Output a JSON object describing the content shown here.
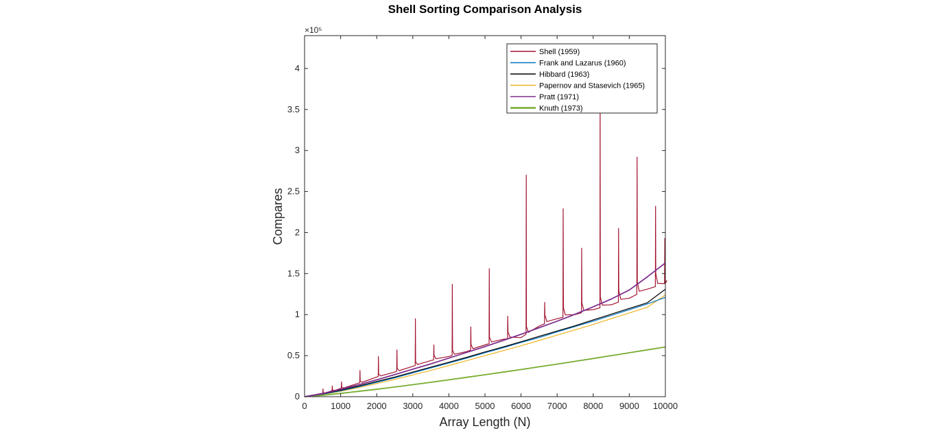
{
  "chart_data": {
    "type": "line",
    "title": "Shell Sorting Comparison Analysis",
    "xlabel": "Array Length (N)",
    "ylabel": "Compares",
    "y_exponent_label": "×10⁵",
    "xlim": [
      0,
      10000
    ],
    "ylim": [
      0,
      440000
    ],
    "x_ticks": [
      0,
      1000,
      2000,
      3000,
      4000,
      5000,
      6000,
      7000,
      8000,
      9000,
      10000
    ],
    "x_tick_labels": [
      "0",
      "1000",
      "2000",
      "3000",
      "4000",
      "5000",
      "6000",
      "7000",
      "8000",
      "9000",
      "10000"
    ],
    "y_ticks": [
      0,
      50000,
      100000,
      150000,
      200000,
      250000,
      300000,
      350000,
      400000
    ],
    "y_tick_labels": [
      "0",
      "0.5",
      "1",
      "1.5",
      "2",
      "2.5",
      "3",
      "3.5",
      "4"
    ],
    "grid": false,
    "legend_position": "top-right",
    "x": [
      0,
      500,
      1000,
      1500,
      2000,
      2500,
      3000,
      3500,
      4000,
      4500,
      5000,
      5500,
      6000,
      6500,
      7000,
      7500,
      8000,
      8500,
      9000,
      9500,
      10000
    ],
    "series": [
      {
        "name": "Shell (1959)",
        "color": "#A2142F",
        "width": 1.2,
        "values": [
          0,
          4200,
          10000,
          16500,
          24000,
          30000,
          37000,
          44000,
          49000,
          55000,
          63000,
          70000,
          72000,
          86000,
          95000,
          100000,
          106000,
          112000,
          120000,
          131000,
          138000
        ],
        "spikes": [
          {
            "x": 512,
            "y": 9500
          },
          {
            "x": 768,
            "y": 13000
          },
          {
            "x": 1024,
            "y": 18000
          },
          {
            "x": 1536,
            "y": 32000
          },
          {
            "x": 2048,
            "y": 49000
          },
          {
            "x": 2560,
            "y": 57000
          },
          {
            "x": 3072,
            "y": 95000
          },
          {
            "x": 3584,
            "y": 63000
          },
          {
            "x": 4096,
            "y": 137000
          },
          {
            "x": 4608,
            "y": 85000
          },
          {
            "x": 5120,
            "y": 156000
          },
          {
            "x": 5632,
            "y": 98000
          },
          {
            "x": 6144,
            "y": 270000
          },
          {
            "x": 6656,
            "y": 115000
          },
          {
            "x": 7168,
            "y": 229000
          },
          {
            "x": 7680,
            "y": 181000
          },
          {
            "x": 8192,
            "y": 364000
          },
          {
            "x": 8704,
            "y": 205000
          },
          {
            "x": 9216,
            "y": 292000
          },
          {
            "x": 9728,
            "y": 232000
          },
          {
            "x": 9984,
            "y": 193000
          }
        ]
      },
      {
        "name": "Frank and Lazarus (1960)",
        "color": "#0072BD",
        "width": 1.2,
        "values": [
          0,
          3000,
          7200,
          12000,
          17500,
          23000,
          29000,
          35000,
          41000,
          47000,
          53500,
          59500,
          66000,
          72000,
          79000,
          85500,
          92000,
          99000,
          106000,
          113000,
          121000
        ]
      },
      {
        "name": "Hibbard (1963)",
        "color": "#000000",
        "width": 1.2,
        "values": [
          0,
          3400,
          8000,
          13000,
          18500,
          24000,
          30000,
          36000,
          42000,
          48000,
          54500,
          60500,
          67000,
          73500,
          80000,
          86500,
          93500,
          100500,
          107500,
          114500,
          131000
        ]
      },
      {
        "name": "Papernov and Stasevich (1965)",
        "color": "#EDB120",
        "width": 1.2,
        "values": [
          0,
          2700,
          6500,
          11000,
          16000,
          21000,
          26500,
          32000,
          38000,
          44000,
          50000,
          56000,
          62000,
          68500,
          75000,
          81500,
          88000,
          95000,
          102000,
          109000,
          124000
        ]
      },
      {
        "name": "Pratt (1971)",
        "color": "#7E2F8E",
        "width": 1.8,
        "values": [
          0,
          3800,
          9000,
          14500,
          20500,
          27000,
          33500,
          40000,
          47000,
          54000,
          61000,
          68500,
          76000,
          84000,
          92000,
          100500,
          109500,
          119000,
          130000,
          146000,
          163000
        ]
      },
      {
        "name": "Knuth (1973)",
        "color": "#77AC30",
        "width": 1.8,
        "values": [
          0,
          1700,
          4000,
          6500,
          9000,
          11800,
          14600,
          17500,
          20500,
          23600,
          26700,
          29900,
          33100,
          36400,
          39700,
          43100,
          46500,
          50000,
          53500,
          57000,
          60500
        ]
      }
    ]
  }
}
